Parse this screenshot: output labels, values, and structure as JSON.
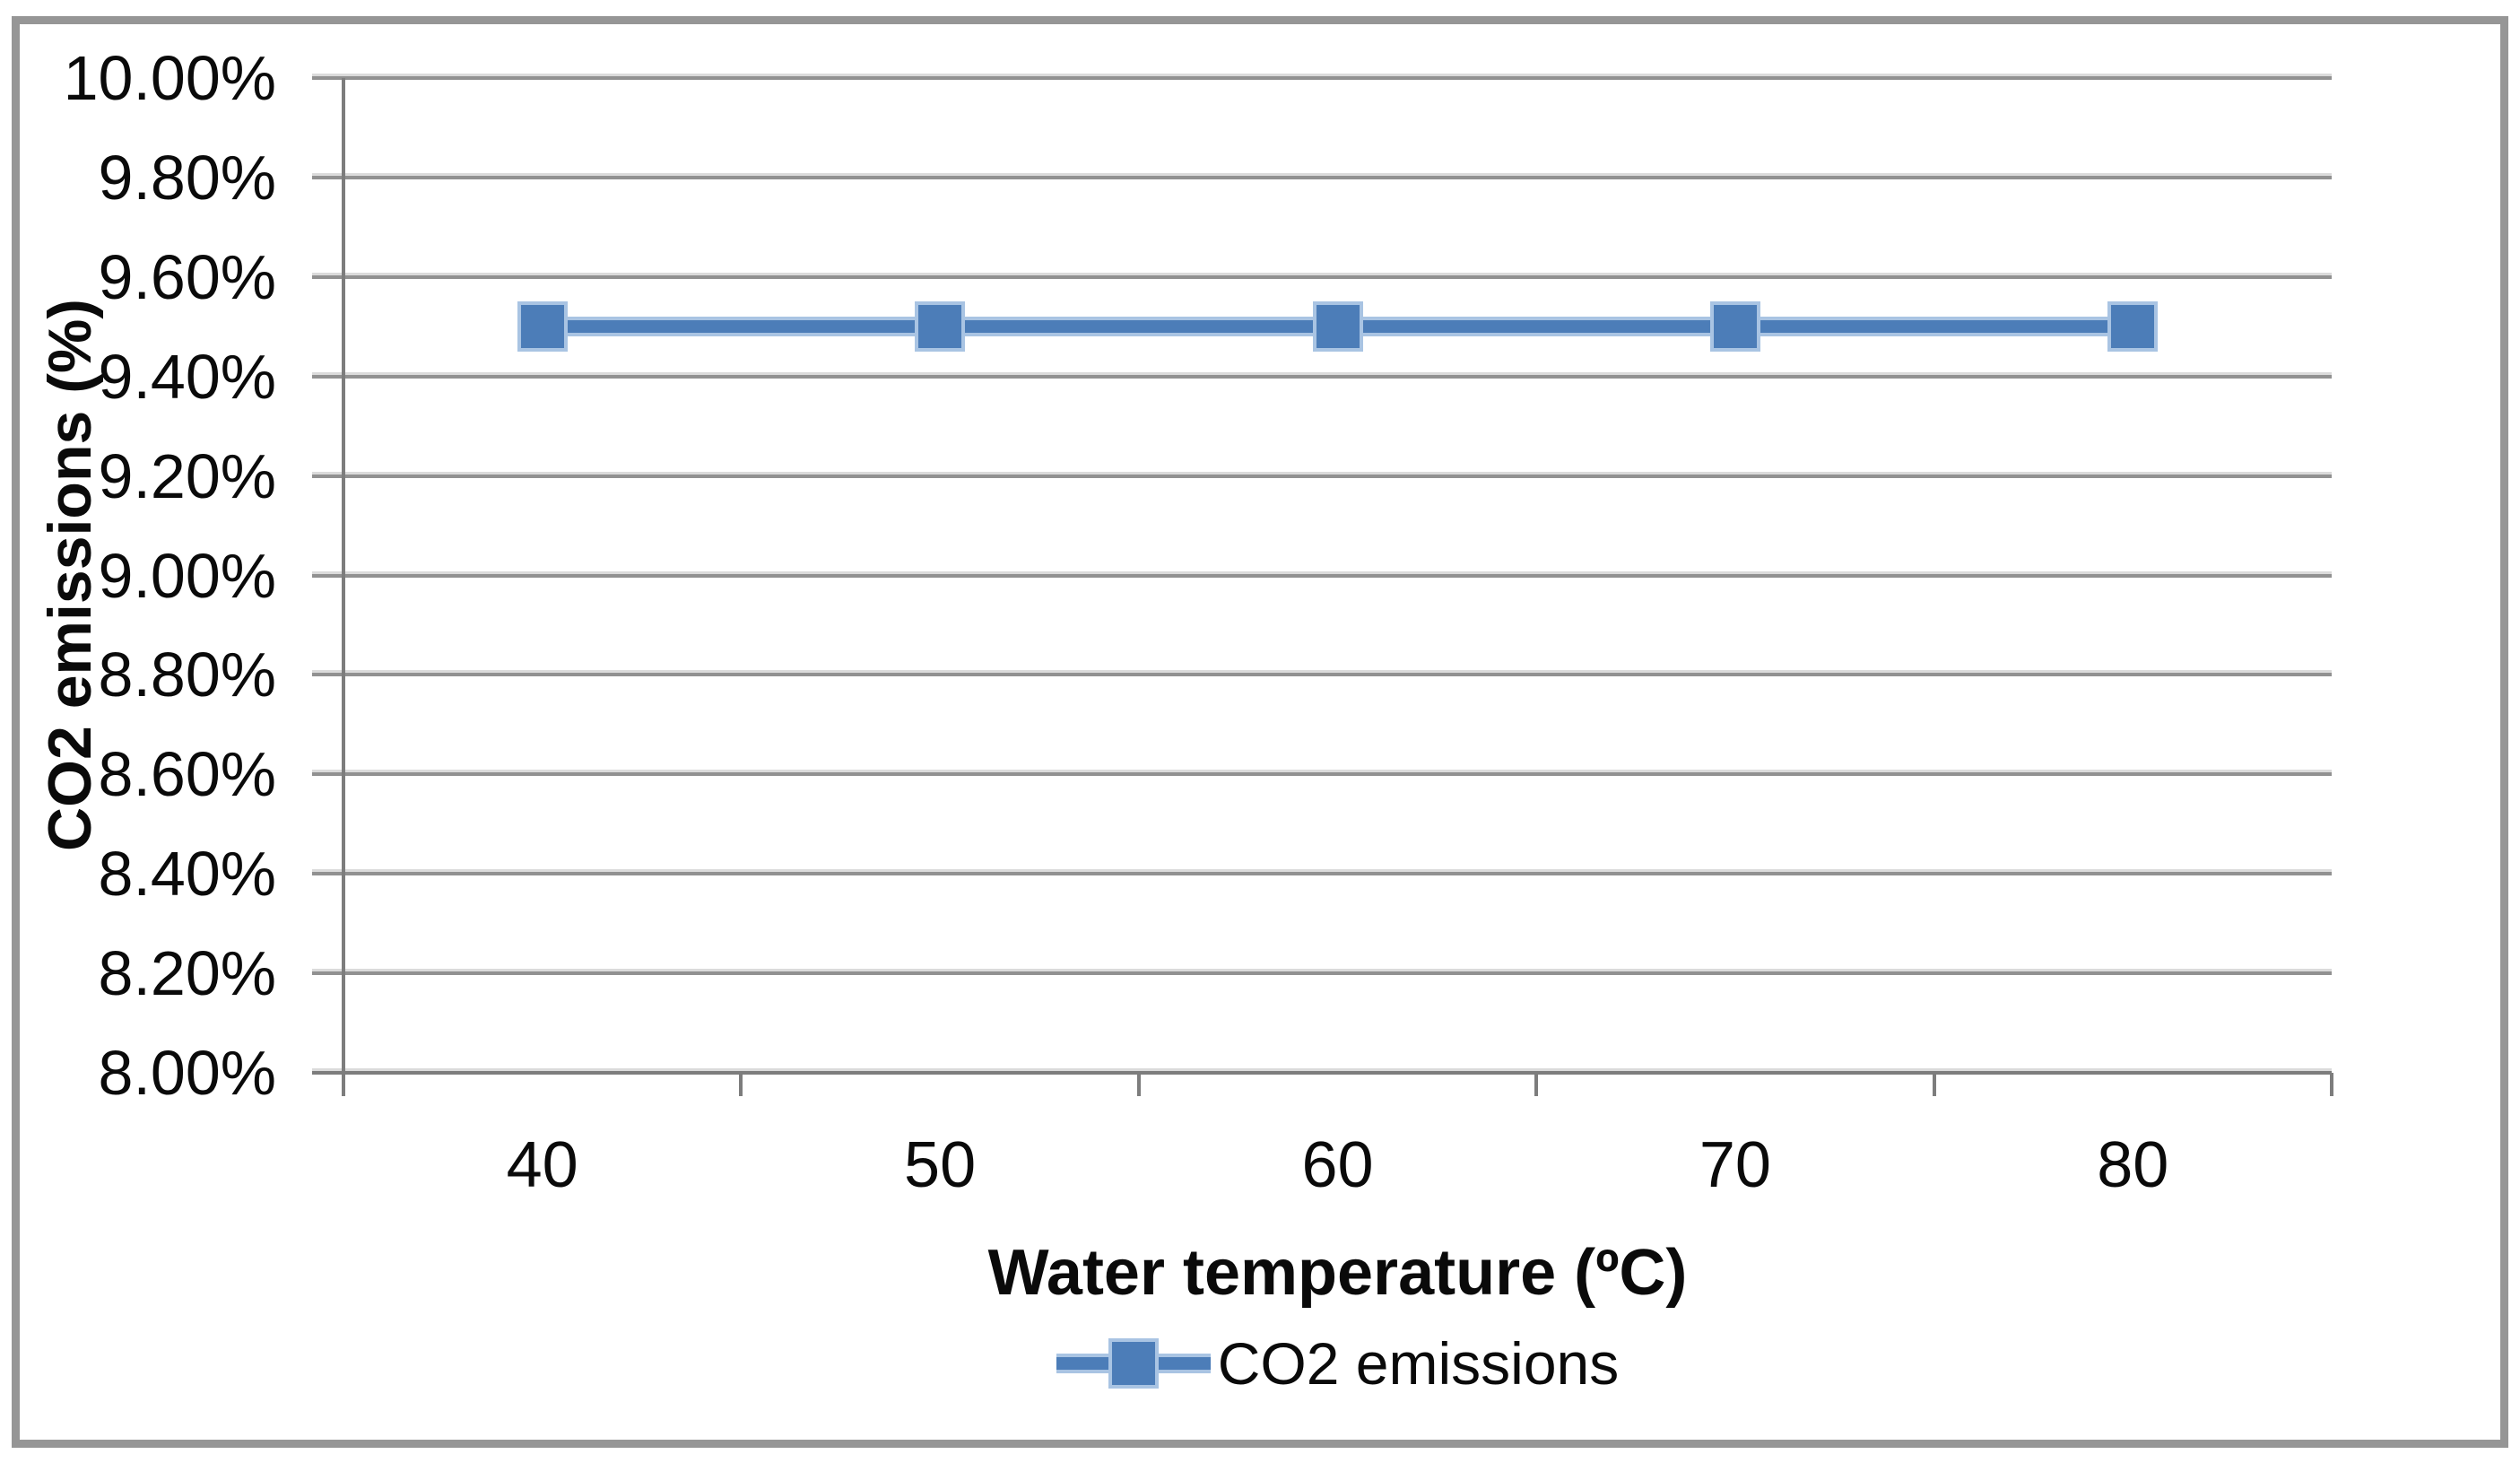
{
  "chart_data": {
    "type": "line",
    "categories": [
      "40",
      "50",
      "60",
      "70",
      "80"
    ],
    "series": [
      {
        "name": "CO2 emissions",
        "values": [
          9.5,
          9.5,
          9.5,
          9.5,
          9.5
        ]
      }
    ],
    "xlabel": "Water temperature (ºC)",
    "ylabel": "CO2 emissions (%)",
    "ylim": [
      8.0,
      10.0
    ],
    "ytick_step": 0.2,
    "ytick_labels_top_to_bottom": [
      "10.00%",
      "9.80%",
      "9.60%",
      "9.40%",
      "9.20%",
      "9.00%",
      "8.80%",
      "8.60%",
      "8.40%",
      "8.20%",
      "8.00%"
    ],
    "grid": true,
    "marker": "square",
    "legend_position": "bottom",
    "legend_items": [
      "CO2 emissions"
    ],
    "colors": {
      "series": "#4C7DB8",
      "series_light_edge": "#A9C4E3",
      "gridline": "#919191",
      "axis": "#7D7D7D",
      "frame_border": "#969696",
      "text": "#0A0A0A",
      "background": "#FFFFFF"
    }
  }
}
